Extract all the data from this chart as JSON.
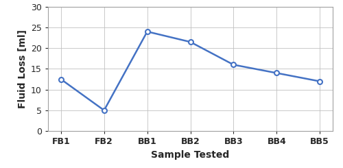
{
  "categories": [
    "FB1",
    "FB2",
    "BB1",
    "BB2",
    "BB3",
    "BB4",
    "BB5"
  ],
  "values": [
    12.5,
    5.0,
    24.0,
    21.5,
    16.0,
    14.0,
    12.0
  ],
  "line_color": "#4472C4",
  "marker_style": "o",
  "marker_facecolor": "white",
  "marker_edgecolor": "#4472C4",
  "marker_size": 5,
  "marker_edgewidth": 1.5,
  "line_width": 1.8,
  "xlabel": "Sample Tested",
  "ylabel": "Fluid Loss [ml]",
  "xlabel_fontsize": 10,
  "ylabel_fontsize": 10,
  "tick_label_fontsize": 9,
  "ylim": [
    0,
    30
  ],
  "yticks": [
    0,
    5,
    10,
    15,
    20,
    25,
    30
  ],
  "grid_color": "#c0c0c0",
  "grid_linewidth": 0.6,
  "background_color": "#ffffff",
  "axis_label_color": "#262626",
  "tick_color": "#262626",
  "spine_color": "#a0a0a0"
}
